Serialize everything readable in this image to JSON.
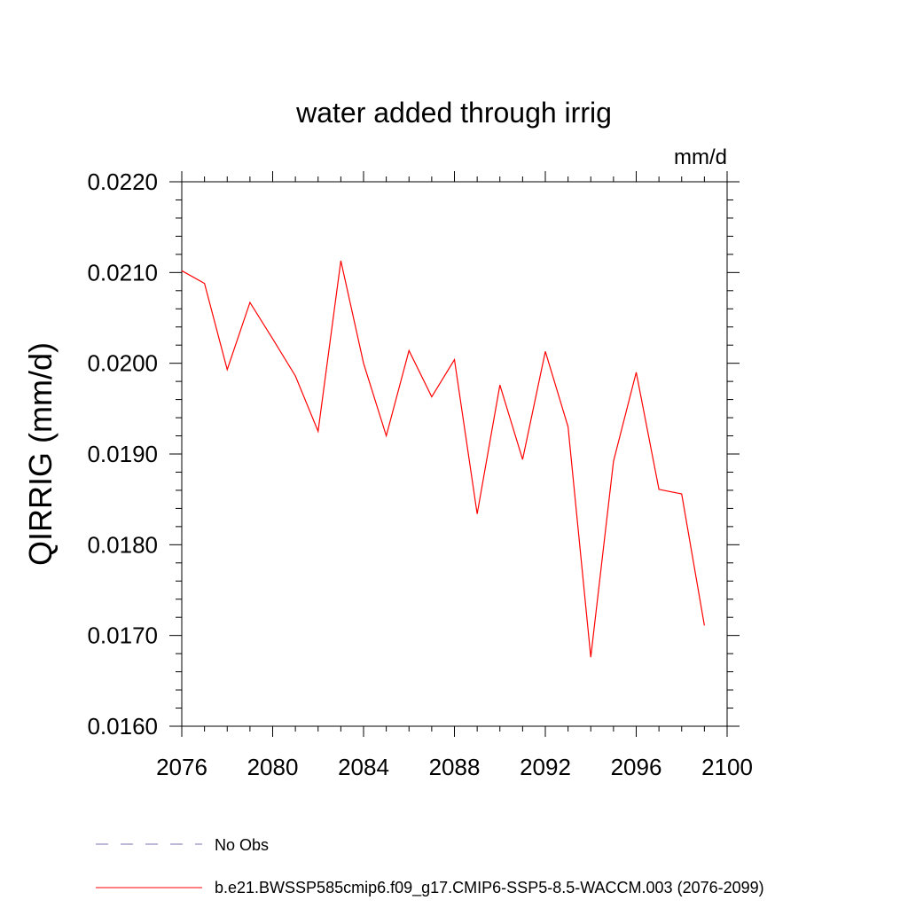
{
  "chart_data": {
    "type": "line",
    "title": "water added through irrig",
    "units_label": "mm/d",
    "ylabel": "QIRRIG  (mm/d)",
    "xlabel": "",
    "xlim": [
      2076,
      2100
    ],
    "ylim": [
      0.016,
      0.022
    ],
    "x_ticks": [
      2076,
      2080,
      2084,
      2088,
      2092,
      2096,
      2100
    ],
    "y_ticks": [
      {
        "value": 0.016,
        "label": "0.0160"
      },
      {
        "value": 0.017,
        "label": "0.0170"
      },
      {
        "value": 0.018,
        "label": "0.0180"
      },
      {
        "value": 0.019,
        "label": "0.0190"
      },
      {
        "value": 0.02,
        "label": "0.0200"
      },
      {
        "value": 0.021,
        "label": "0.0210"
      },
      {
        "value": 0.022,
        "label": "0.0220"
      }
    ],
    "x": [
      2076,
      2077,
      2078,
      2079,
      2080,
      2081,
      2082,
      2083,
      2084,
      2085,
      2086,
      2087,
      2088,
      2089,
      2090,
      2091,
      2092,
      2093,
      2094,
      2095,
      2096,
      2097,
      2098,
      2099
    ],
    "series": [
      {
        "name": "b.e21.BWSSP585cmip6.f09_g17.CMIP6-SSP5-8.5-WACCM.003 (2076-2099)",
        "color": "#ff0000",
        "values": [
          0.02102,
          0.02088,
          0.01993,
          0.02067,
          0.02027,
          0.01986,
          0.01925,
          0.02113,
          0.02,
          0.0192,
          0.02014,
          0.01963,
          0.02004,
          0.01834,
          0.01976,
          0.01894,
          0.02013,
          0.0193,
          0.01676,
          0.01892,
          0.0199,
          0.01861,
          0.01856,
          0.01711
        ]
      }
    ],
    "legend": [
      {
        "label": "No Obs",
        "style": "dashed",
        "color": "#7b6fb0"
      },
      {
        "label": "b.e21.BWSSP585cmip6.f09_g17.CMIP6-SSP5-8.5-WACCM.003 (2076-2099)",
        "style": "solid",
        "color": "#ff0000"
      }
    ],
    "legend_position": "bottom",
    "grid": false
  }
}
